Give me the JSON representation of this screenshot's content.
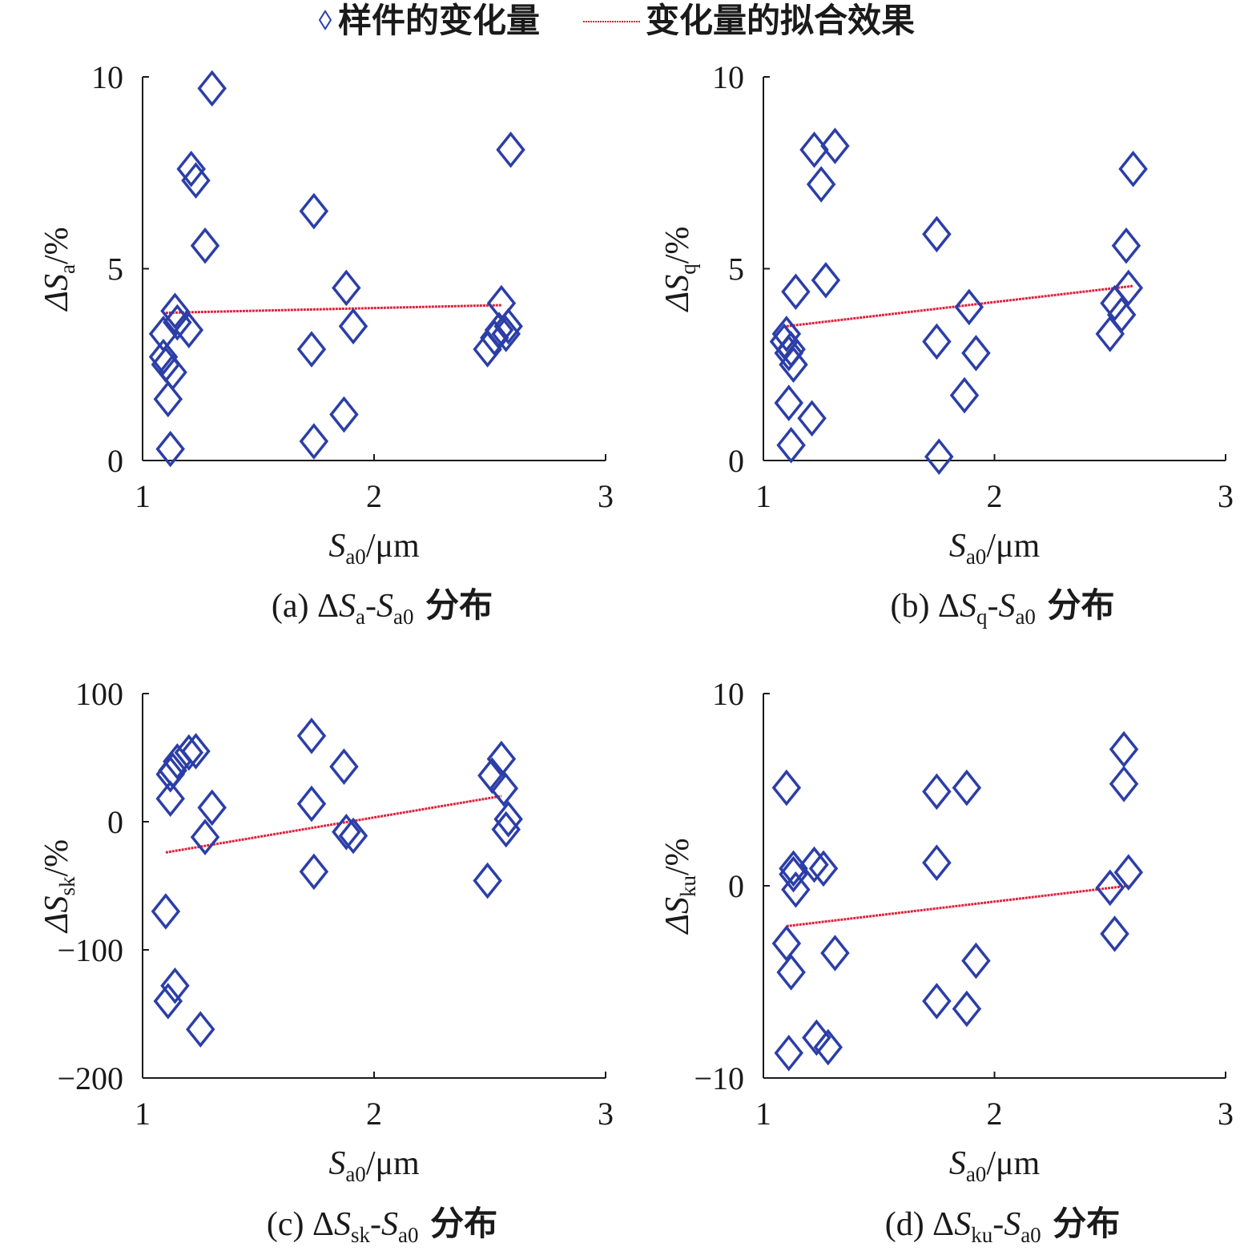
{
  "legend": {
    "marker_label": "样件的变化量",
    "line_label": "变化量的拟合效果",
    "marker_color": "#2b3ea8",
    "line_color": "#e0203c"
  },
  "chart_data": [
    {
      "type": "scatter",
      "panel_label": "(a)",
      "caption": {
        "prefix": "(a) ΔS",
        "sub1": "a",
        "dash": "-S",
        "sub2": "a0",
        "suffix": "分布"
      },
      "xlabel": {
        "main": "S",
        "sub": "a0",
        "unit": "/μm"
      },
      "ylabel": {
        "main": "ΔS",
        "sub": "a",
        "unit": "/%"
      },
      "xlim": [
        1,
        3
      ],
      "ylim": [
        0,
        10
      ],
      "xticks": [
        1,
        2,
        3
      ],
      "yticks": [
        0,
        5,
        10
      ],
      "ytick_labels": [
        "0",
        "5",
        "10"
      ],
      "grid": false,
      "series": [
        {
          "name": "样件的变化量",
          "points": [
            [
              1.09,
              3.3
            ],
            [
              1.09,
              2.7
            ],
            [
              1.1,
              2.5
            ],
            [
              1.11,
              1.6
            ],
            [
              1.12,
              0.3
            ],
            [
              1.13,
              2.3
            ],
            [
              1.14,
              3.9
            ],
            [
              1.15,
              3.6
            ],
            [
              1.2,
              3.4
            ],
            [
              1.21,
              7.6
            ],
            [
              1.23,
              7.3
            ],
            [
              1.27,
              5.6
            ],
            [
              1.3,
              9.7
            ],
            [
              1.74,
              6.5
            ],
            [
              1.73,
              2.9
            ],
            [
              1.74,
              0.5
            ],
            [
              1.87,
              1.2
            ],
            [
              1.88,
              4.5
            ],
            [
              1.91,
              3.5
            ],
            [
              2.49,
              2.9
            ],
            [
              2.52,
              3.2
            ],
            [
              2.54,
              3.4
            ],
            [
              2.55,
              4.1
            ],
            [
              2.57,
              3.3
            ],
            [
              2.58,
              3.5
            ],
            [
              2.59,
              8.1
            ]
          ]
        }
      ],
      "fit": {
        "name": "变化量的拟合效果",
        "x": [
          1.1,
          2.55
        ],
        "y": [
          3.85,
          4.05
        ]
      }
    },
    {
      "type": "scatter",
      "panel_label": "(b)",
      "caption": {
        "prefix": "(b) ΔS",
        "sub1": "q",
        "dash": "-S",
        "sub2": "a0",
        "suffix": "分布"
      },
      "xlabel": {
        "main": "S",
        "sub": "a0",
        "unit": "/μm"
      },
      "ylabel": {
        "main": "ΔS",
        "sub": "q",
        "unit": "/%"
      },
      "xlim": [
        1,
        3
      ],
      "ylim": [
        0,
        10
      ],
      "xticks": [
        1,
        2,
        3
      ],
      "yticks": [
        0,
        5,
        10
      ],
      "ytick_labels": [
        "0",
        "5",
        "10"
      ],
      "grid": false,
      "series": [
        {
          "name": "样件的变化量",
          "points": [
            [
              1.09,
              3.1
            ],
            [
              1.1,
              3.3
            ],
            [
              1.11,
              2.8
            ],
            [
              1.12,
              2.9
            ],
            [
              1.11,
              1.5
            ],
            [
              1.12,
              0.4
            ],
            [
              1.13,
              2.5
            ],
            [
              1.14,
              4.4
            ],
            [
              1.21,
              1.1
            ],
            [
              1.22,
              8.1
            ],
            [
              1.25,
              7.2
            ],
            [
              1.27,
              4.7
            ],
            [
              1.31,
              8.2
            ],
            [
              1.75,
              5.9
            ],
            [
              1.75,
              3.1
            ],
            [
              1.76,
              0.1
            ],
            [
              1.87,
              1.7
            ],
            [
              1.89,
              4.0
            ],
            [
              1.92,
              2.8
            ],
            [
              2.5,
              3.3
            ],
            [
              2.52,
              4.1
            ],
            [
              2.55,
              3.8
            ],
            [
              2.57,
              5.6
            ],
            [
              2.58,
              4.5
            ],
            [
              2.6,
              7.6
            ]
          ]
        }
      ],
      "fit": {
        "name": "变化量的拟合效果",
        "x": [
          1.1,
          2.6
        ],
        "y": [
          3.5,
          4.55
        ]
      }
    },
    {
      "type": "scatter",
      "panel_label": "(c)",
      "caption": {
        "prefix": "(c) ΔS",
        "sub1": "sk",
        "dash": "-S",
        "sub2": "a0",
        "suffix": "分布"
      },
      "xlabel": {
        "main": "S",
        "sub": "a0",
        "unit": "/μm"
      },
      "ylabel": {
        "main": "ΔS",
        "sub": "sk",
        "unit": "/%"
      },
      "xlim": [
        1,
        3
      ],
      "ylim": [
        -200,
        100
      ],
      "xticks": [
        1,
        2,
        3
      ],
      "yticks": [
        -200,
        -100,
        0,
        100
      ],
      "ytick_labels": [
        "−200",
        "−100",
        "0",
        "100"
      ],
      "grid": false,
      "series": [
        {
          "name": "样件的变化量",
          "points": [
            [
              1.1,
              -70
            ],
            [
              1.11,
              -140
            ],
            [
              1.12,
              18
            ],
            [
              1.12,
              37
            ],
            [
              1.13,
              40
            ],
            [
              1.14,
              -128
            ],
            [
              1.15,
              47
            ],
            [
              1.2,
              54
            ],
            [
              1.23,
              55
            ],
            [
              1.25,
              -162
            ],
            [
              1.27,
              -12
            ],
            [
              1.3,
              11
            ],
            [
              1.73,
              67
            ],
            [
              1.73,
              14
            ],
            [
              1.74,
              -39
            ],
            [
              1.87,
              43
            ],
            [
              1.88,
              -8
            ],
            [
              1.91,
              -11
            ],
            [
              2.49,
              -46
            ],
            [
              2.51,
              36
            ],
            [
              2.55,
              49
            ],
            [
              2.56,
              26
            ],
            [
              2.57,
              -6
            ],
            [
              2.58,
              2
            ]
          ]
        }
      ],
      "fit": {
        "name": "变化量的拟合效果",
        "x": [
          1.1,
          2.55
        ],
        "y": [
          -24,
          20
        ]
      }
    },
    {
      "type": "scatter",
      "panel_label": "(d)",
      "caption": {
        "prefix": "(d) ΔS",
        "sub1": "ku",
        "dash": "-S",
        "sub2": "a0",
        "suffix": "分布"
      },
      "xlabel": {
        "main": "S",
        "sub": "a0",
        "unit": "/μm"
      },
      "ylabel": {
        "main": "ΔS",
        "sub": "ku",
        "unit": "/%"
      },
      "xlim": [
        1,
        3
      ],
      "ylim": [
        -10,
        10
      ],
      "xticks": [
        1,
        2,
        3
      ],
      "yticks": [
        -10,
        0,
        10
      ],
      "ytick_labels": [
        "−10",
        "0",
        "10"
      ],
      "grid": false,
      "series": [
        {
          "name": "样件的变化量",
          "points": [
            [
              1.1,
              5.1
            ],
            [
              1.1,
              -3.0
            ],
            [
              1.12,
              -4.5
            ],
            [
              1.11,
              -8.7
            ],
            [
              1.13,
              0.9
            ],
            [
              1.13,
              0.6
            ],
            [
              1.14,
              -0.2
            ],
            [
              1.22,
              1.1
            ],
            [
              1.23,
              -7.9
            ],
            [
              1.26,
              0.9
            ],
            [
              1.28,
              -8.4
            ],
            [
              1.31,
              -3.5
            ],
            [
              1.75,
              4.9
            ],
            [
              1.75,
              1.2
            ],
            [
              1.75,
              -6.0
            ],
            [
              1.88,
              5.1
            ],
            [
              1.88,
              -6.4
            ],
            [
              1.92,
              -3.9
            ],
            [
              2.5,
              -0.1
            ],
            [
              2.52,
              -2.5
            ],
            [
              2.56,
              7.1
            ],
            [
              2.56,
              5.3
            ],
            [
              2.58,
              0.7
            ]
          ]
        }
      ],
      "fit": {
        "name": "变化量的拟合效果",
        "x": [
          1.1,
          2.58
        ],
        "y": [
          -2.1,
          0.0
        ]
      }
    }
  ]
}
